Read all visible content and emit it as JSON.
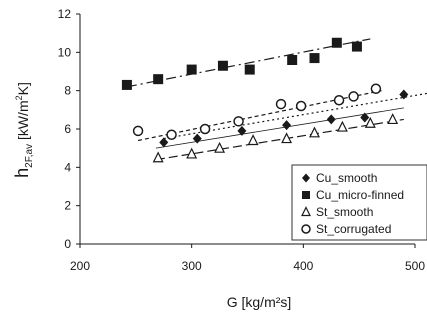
{
  "chart_data": {
    "type": "scatter",
    "title": "",
    "xlabel": "G [kg/m²s]",
    "ylabel": "h2F,av [kW/m²K]",
    "xlim": [
      200,
      500
    ],
    "ylim": [
      0,
      12
    ],
    "xticks": [
      200,
      300,
      400,
      500
    ],
    "yticks": [
      0,
      2,
      4,
      6,
      8,
      10,
      12
    ],
    "grid": false,
    "legend_position": "bottom-right",
    "series": [
      {
        "name": "Cu_smooth",
        "marker": "diamond",
        "x": [
          275,
          305,
          345,
          385,
          425,
          455,
          490,
          515
        ],
        "y": [
          5.3,
          5.5,
          5.9,
          6.2,
          6.5,
          6.6,
          7.8,
          7.8
        ]
      },
      {
        "name": "Cu_micro-finned",
        "marker": "square",
        "x": [
          242,
          270,
          300,
          328,
          352,
          390,
          410,
          430,
          448
        ],
        "y": [
          8.3,
          8.6,
          9.1,
          9.3,
          9.1,
          9.6,
          9.7,
          10.5,
          10.3
        ]
      },
      {
        "name": "St_smooth",
        "marker": "triangle",
        "x": [
          270,
          300,
          325,
          355,
          385,
          410,
          435,
          460,
          480
        ],
        "y": [
          4.5,
          4.7,
          5.0,
          5.4,
          5.5,
          5.8,
          6.1,
          6.3,
          6.5
        ]
      },
      {
        "name": "St_corrugated",
        "marker": "circle",
        "x": [
          252,
          282,
          312,
          342,
          380,
          398,
          432,
          445,
          465
        ],
        "y": [
          5.9,
          5.7,
          6.0,
          6.4,
          7.3,
          7.2,
          7.5,
          7.7,
          8.1
        ]
      }
    ],
    "trendlines": [
      {
        "series": "Cu_smooth",
        "style": "dotted",
        "x": [
          275,
          515
        ],
        "y": [
          5.5,
          7.9
        ]
      },
      {
        "series": "Cu_micro-finned",
        "style": "dashdot",
        "x": [
          242,
          460
        ],
        "y": [
          8.2,
          10.7
        ]
      },
      {
        "series": "St_smooth",
        "style": "longdash",
        "x": [
          268,
          490
        ],
        "y": [
          4.4,
          6.5
        ]
      },
      {
        "series": "St_corrugated",
        "style": "dashed",
        "x": [
          252,
          470
        ],
        "y": [
          5.4,
          8.0
        ]
      },
      {
        "series": "",
        "style": "solid",
        "x": [
          268,
          490
        ],
        "y": [
          5.0,
          7.1
        ]
      }
    ]
  }
}
